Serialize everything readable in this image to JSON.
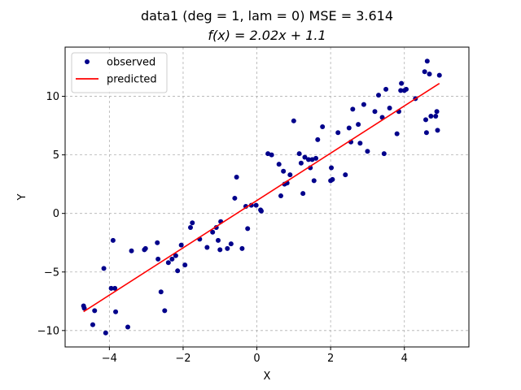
{
  "chart_data": {
    "type": "scatter",
    "title_line1": "data1  (deg = 1, lam = 0) MSE = 3.614",
    "title_line2": "f(x) = 2.02x + 1.1",
    "xlabel": "X",
    "ylabel": "Y",
    "xlim": [
      -5.2,
      5.75
    ],
    "ylim": [
      -11.4,
      14.2
    ],
    "xticks": [
      -4,
      -2,
      0,
      2,
      4
    ],
    "yticks": [
      -10,
      -5,
      0,
      5,
      10
    ],
    "xtick_labels": [
      "−4",
      "−2",
      "0",
      "2",
      "4"
    ],
    "ytick_labels": [
      "−10",
      "−5",
      "0",
      "5",
      "10"
    ],
    "grid": true,
    "legend_position": "top-left",
    "series": [
      {
        "name": "observed",
        "kind": "scatter",
        "color": "#00008b",
        "points": [
          [
            -4.7,
            -7.9
          ],
          [
            -4.68,
            -8.1
          ],
          [
            -4.45,
            -9.5
          ],
          [
            -4.4,
            -8.3
          ],
          [
            -4.15,
            -4.7
          ],
          [
            -4.1,
            -10.2
          ],
          [
            -3.95,
            -6.4
          ],
          [
            -3.9,
            -2.3
          ],
          [
            -3.85,
            -6.4
          ],
          [
            -3.83,
            -8.4
          ],
          [
            -3.5,
            -9.7
          ],
          [
            -3.4,
            -3.2
          ],
          [
            -3.05,
            -3.1
          ],
          [
            -3.02,
            -3.0
          ],
          [
            -2.7,
            -2.5
          ],
          [
            -2.68,
            -3.9
          ],
          [
            -2.6,
            -6.7
          ],
          [
            -2.5,
            -8.3
          ],
          [
            -2.4,
            -4.2
          ],
          [
            -2.3,
            -3.9
          ],
          [
            -2.2,
            -3.6
          ],
          [
            -2.15,
            -4.9
          ],
          [
            -2.05,
            -2.7
          ],
          [
            -1.95,
            -4.4
          ],
          [
            -1.8,
            -1.2
          ],
          [
            -1.75,
            -0.8
          ],
          [
            -1.55,
            -2.2
          ],
          [
            -1.35,
            -2.9
          ],
          [
            -1.2,
            -1.6
          ],
          [
            -1.1,
            -1.2
          ],
          [
            -1.05,
            -2.3
          ],
          [
            -1.0,
            -3.1
          ],
          [
            -0.98,
            -0.7
          ],
          [
            -0.8,
            -3.0
          ],
          [
            -0.7,
            -2.6
          ],
          [
            -0.6,
            1.3
          ],
          [
            -0.55,
            3.1
          ],
          [
            -0.4,
            -3.0
          ],
          [
            -0.3,
            0.6
          ],
          [
            -0.25,
            -1.3
          ],
          [
            -0.15,
            0.7
          ],
          [
            -0.02,
            0.7
          ],
          [
            0.1,
            0.3
          ],
          [
            0.12,
            0.2
          ],
          [
            0.3,
            5.1
          ],
          [
            0.4,
            5.0
          ],
          [
            0.6,
            4.2
          ],
          [
            0.65,
            1.5
          ],
          [
            0.72,
            3.6
          ],
          [
            0.75,
            2.5
          ],
          [
            0.82,
            2.6
          ],
          [
            0.9,
            3.3
          ],
          [
            1.0,
            7.9
          ],
          [
            1.15,
            5.1
          ],
          [
            1.2,
            4.3
          ],
          [
            1.25,
            1.7
          ],
          [
            1.3,
            4.8
          ],
          [
            1.4,
            4.6
          ],
          [
            1.45,
            3.9
          ],
          [
            1.5,
            4.6
          ],
          [
            1.55,
            2.8
          ],
          [
            1.6,
            4.7
          ],
          [
            1.65,
            6.3
          ],
          [
            1.78,
            7.4
          ],
          [
            2.0,
            2.8
          ],
          [
            2.02,
            3.9
          ],
          [
            2.05,
            2.9
          ],
          [
            2.2,
            6.9
          ],
          [
            2.4,
            3.3
          ],
          [
            2.5,
            7.3
          ],
          [
            2.55,
            6.1
          ],
          [
            2.6,
            8.9
          ],
          [
            2.75,
            7.6
          ],
          [
            2.8,
            6.0
          ],
          [
            2.9,
            9.3
          ],
          [
            3.0,
            5.3
          ],
          [
            3.2,
            8.7
          ],
          [
            3.3,
            10.1
          ],
          [
            3.4,
            8.2
          ],
          [
            3.45,
            5.1
          ],
          [
            3.5,
            10.6
          ],
          [
            3.6,
            9.0
          ],
          [
            3.8,
            6.8
          ],
          [
            3.85,
            8.7
          ],
          [
            3.9,
            10.5
          ],
          [
            3.92,
            11.1
          ],
          [
            4.0,
            10.5
          ],
          [
            4.05,
            10.6
          ],
          [
            4.3,
            9.8
          ],
          [
            4.55,
            12.1
          ],
          [
            4.58,
            8.0
          ],
          [
            4.6,
            6.9
          ],
          [
            4.62,
            13.0
          ],
          [
            4.68,
            11.9
          ],
          [
            4.72,
            8.3
          ],
          [
            4.85,
            8.3
          ],
          [
            4.88,
            8.7
          ],
          [
            4.9,
            7.1
          ],
          [
            4.95,
            11.8
          ]
        ]
      },
      {
        "name": "predicted",
        "kind": "line",
        "color": "#ff0000",
        "points": [
          [
            -4.7,
            -8.39
          ],
          [
            4.95,
            11.1
          ]
        ]
      }
    ]
  }
}
